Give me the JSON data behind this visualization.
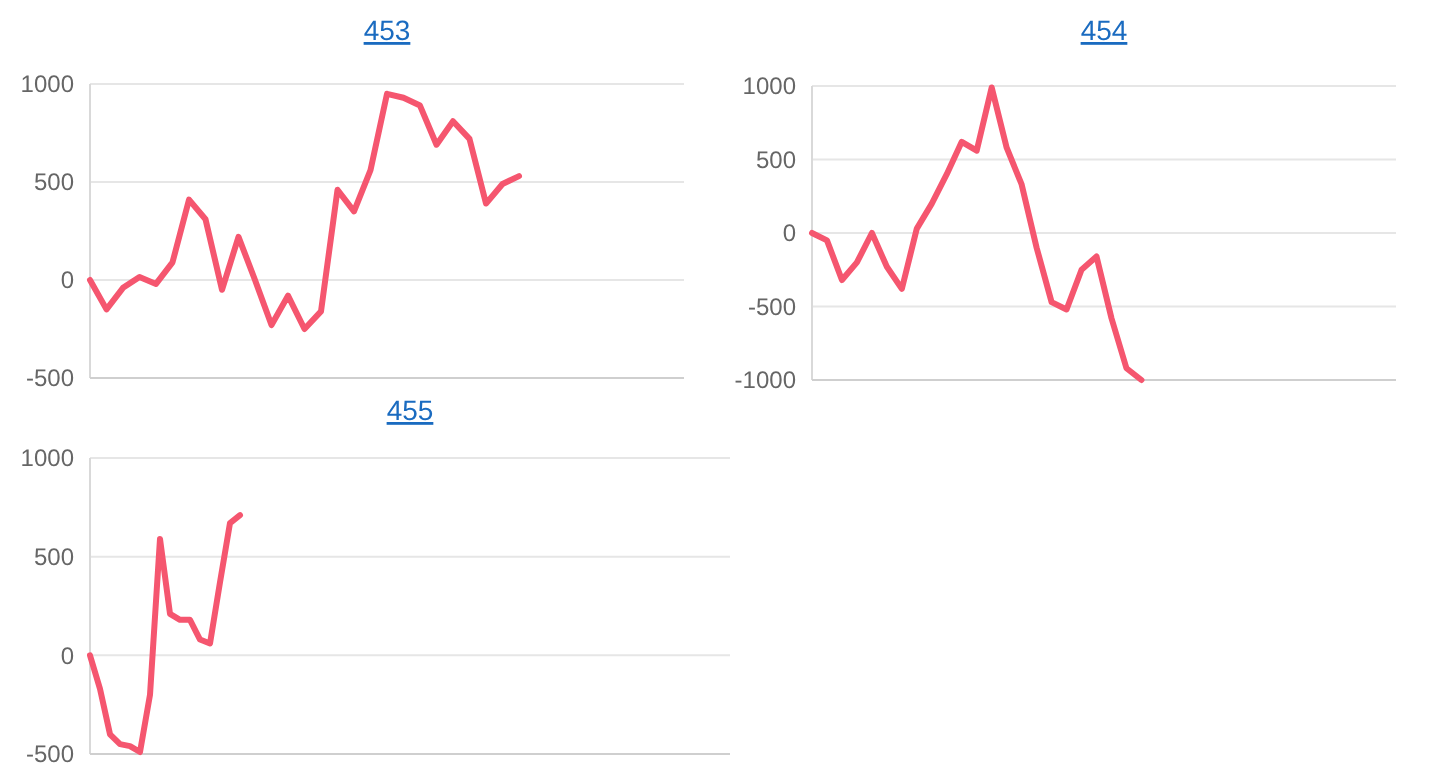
{
  "chart_data": [
    {
      "type": "line",
      "title": "453",
      "tick_labels": "y",
      "grid": "y",
      "ylim": [
        -500,
        1000
      ],
      "yticks": [
        -500,
        0,
        500,
        1000
      ],
      "line_style": "solid",
      "categories": [
        null,
        null,
        null,
        null,
        null,
        null,
        null,
        null,
        null,
        null,
        null,
        null,
        null,
        null,
        null,
        null,
        null,
        null,
        null,
        null,
        null,
        null,
        null,
        null,
        null,
        null,
        null,
        null,
        null,
        null,
        null,
        null,
        null,
        null,
        null,
        null,
        null
      ],
      "series": [
        {
          "color": "#f5566f",
          "values": [
            0,
            -150,
            -40,
            15,
            -20,
            90,
            410,
            310,
            -50,
            220,
            0,
            -230,
            -80,
            -250,
            -160,
            460,
            350,
            560,
            950,
            930,
            890,
            690,
            810,
            720,
            390,
            490,
            530,
            null,
            null,
            null,
            null,
            null,
            null,
            null,
            null,
            null,
            null
          ]
        }
      ]
    },
    {
      "type": "line",
      "title": "454",
      "tick_labels": "y",
      "grid": "y",
      "ylim": [
        -1000,
        1000
      ],
      "yticks": [
        -1000,
        -500,
        0,
        500,
        1000
      ],
      "line_style": "solid",
      "categories": [
        null,
        null,
        null,
        null,
        null,
        null,
        null,
        null,
        null,
        null,
        null,
        null,
        null,
        null,
        null,
        null,
        null,
        null,
        null,
        null,
        null,
        null,
        null,
        null,
        null,
        null,
        null,
        null,
        null,
        null,
        null,
        null,
        null,
        null,
        null,
        null,
        null,
        null,
        null,
        null
      ],
      "series": [
        {
          "color": "#f5566f",
          "values": [
            0,
            -50,
            -320,
            -200,
            0,
            -230,
            -380,
            30,
            200,
            400,
            620,
            560,
            990,
            580,
            330,
            -100,
            -470,
            -520,
            -250,
            -160,
            -580,
            -920,
            -1000,
            null,
            null,
            null,
            null,
            null,
            null,
            null,
            null,
            null,
            null,
            null,
            null,
            null,
            null,
            null,
            null,
            null
          ]
        }
      ]
    },
    {
      "type": "line",
      "title": "455",
      "tick_labels": "y",
      "grid": "y",
      "ylim": [
        -500,
        1000
      ],
      "yticks": [
        -500,
        0,
        500,
        1000
      ],
      "line_style": "solid",
      "categories": [
        null,
        null,
        null,
        null,
        null,
        null,
        null,
        null,
        null,
        null,
        null,
        null,
        null,
        null,
        null,
        null,
        null,
        null,
        null,
        null,
        null,
        null,
        null,
        null,
        null,
        null,
        null,
        null,
        null,
        null,
        null,
        null,
        null,
        null,
        null,
        null,
        null,
        null,
        null,
        null,
        null,
        null,
        null,
        null,
        null,
        null,
        null,
        null,
        null,
        null,
        null,
        null,
        null,
        null,
        null,
        null,
        null,
        null,
        null,
        null,
        null,
        null,
        null,
        null,
        null
      ],
      "series": [
        {
          "color": "#f5566f",
          "values": [
            0,
            -170,
            -400,
            -450,
            -460,
            -490,
            -200,
            590,
            210,
            180,
            180,
            80,
            60,
            370,
            670,
            710,
            null,
            null,
            null,
            null,
            null,
            null,
            null,
            null,
            null,
            null,
            null,
            null,
            null,
            null,
            null,
            null,
            null,
            null,
            null,
            null,
            null,
            null,
            null,
            null,
            null,
            null,
            null,
            null,
            null,
            null,
            null,
            null,
            null,
            null,
            null,
            null,
            null,
            null,
            null,
            null,
            null,
            null,
            null,
            null,
            null,
            null,
            null,
            null,
            null
          ]
        }
      ]
    }
  ]
}
